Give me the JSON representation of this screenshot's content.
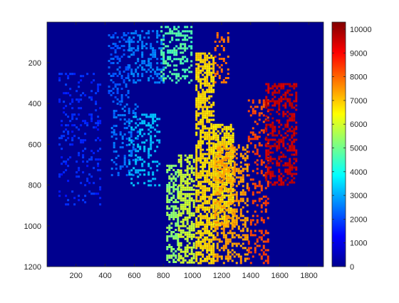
{
  "chart_data": {
    "type": "heatmap",
    "title": "",
    "xlabel": "",
    "ylabel": "",
    "xlim": [
      1,
      1900
    ],
    "ylim": [
      1,
      1200
    ],
    "y_reversed": true,
    "x_ticks": [
      200,
      400,
      600,
      800,
      1000,
      1200,
      1400,
      1600,
      1800
    ],
    "y_ticks": [
      200,
      400,
      600,
      800,
      1000,
      1200
    ],
    "colormap": "jet",
    "colorbar": {
      "range": [
        0,
        10300
      ],
      "ticks": [
        0,
        1000,
        2000,
        3000,
        4000,
        5000,
        6000,
        7000,
        8000,
        9000,
        10000
      ],
      "placement": "right"
    },
    "background_value": 0,
    "regions": [
      {
        "x": [
          80,
          360
        ],
        "y": [
          250,
          900
        ],
        "value": 1700,
        "density": 0.16
      },
      {
        "x": [
          420,
          560
        ],
        "y": [
          50,
          400
        ],
        "value": 2200,
        "density": 0.35
      },
      {
        "x": [
          560,
          800
        ],
        "y": [
          40,
          300
        ],
        "value": 2600,
        "density": 0.35
      },
      {
        "x": [
          560,
          780
        ],
        "y": [
          450,
          800
        ],
        "value": 3200,
        "density": 0.3
      },
      {
        "x": [
          440,
          620
        ],
        "y": [
          400,
          750
        ],
        "value": 2400,
        "density": 0.25
      },
      {
        "x": [
          780,
          1000
        ],
        "y": [
          20,
          300
        ],
        "value": 4700,
        "density": 0.4
      },
      {
        "x": [
          820,
          900
        ],
        "y": [
          700,
          1180
        ],
        "value": 5300,
        "density": 0.55
      },
      {
        "x": [
          900,
          1010
        ],
        "y": [
          650,
          1180
        ],
        "value": 5900,
        "density": 0.55
      },
      {
        "x": [
          1020,
          1140
        ],
        "y": [
          150,
          1180
        ],
        "value": 6800,
        "density": 0.7
      },
      {
        "x": [
          1140,
          1280
        ],
        "y": [
          500,
          1000
        ],
        "value": 6700,
        "density": 0.75
      },
      {
        "x": [
          1150,
          1380
        ],
        "y": [
          600,
          1180
        ],
        "value": 7400,
        "density": 0.45
      },
      {
        "x": [
          1150,
          1250
        ],
        "y": [
          50,
          300
        ],
        "value": 7900,
        "density": 0.3
      },
      {
        "x": [
          1380,
          1520
        ],
        "y": [
          380,
          1180
        ],
        "value": 8300,
        "density": 0.3
      },
      {
        "x": [
          1500,
          1720
        ],
        "y": [
          300,
          800
        ],
        "value": 9600,
        "density": 0.45
      }
    ]
  }
}
